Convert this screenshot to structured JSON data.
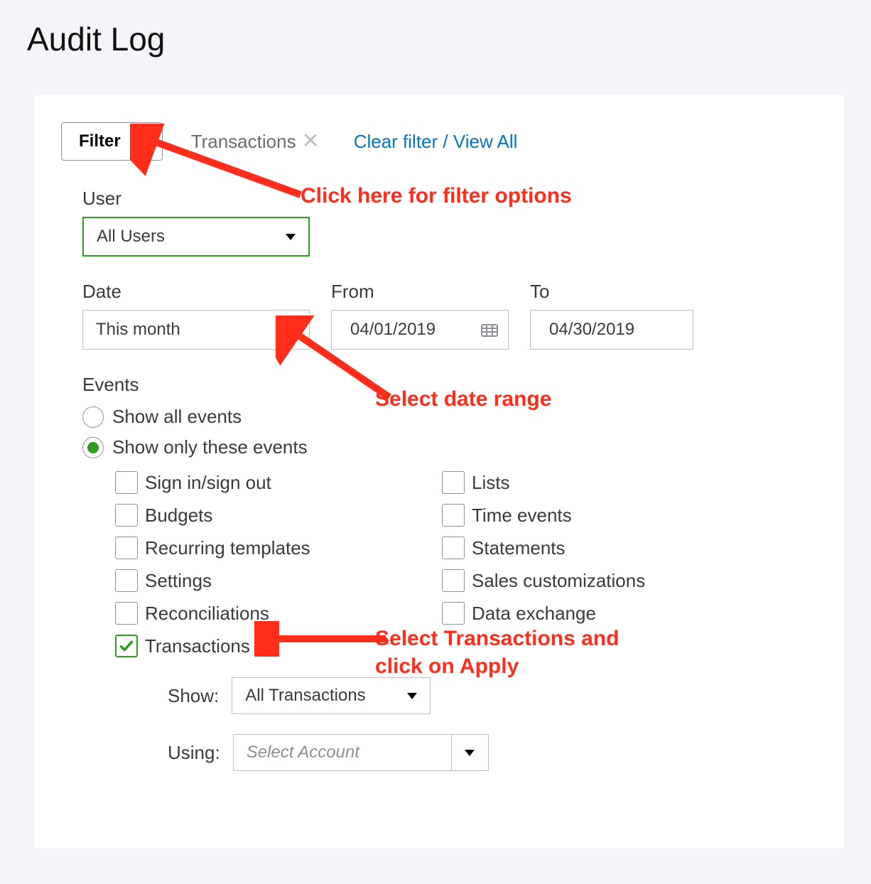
{
  "page_title": "Audit Log",
  "top_bar": {
    "filter_label": "Filter",
    "active_chip": "Transactions",
    "clear_link": "Clear filter / View All"
  },
  "user": {
    "label": "User",
    "selected": "All Users",
    "border_color": "#2ca01c"
  },
  "date": {
    "label": "Date",
    "selected": "This month",
    "from_label": "From",
    "from_value": "04/01/2019",
    "to_label": "To",
    "to_value": "04/30/2019"
  },
  "events": {
    "heading": "Events",
    "radio_all": "Show all events",
    "radio_only": "Show only these events",
    "selected_radio": "only",
    "checkbox_cols": {
      "left": [
        {
          "label": "Sign in/sign out",
          "checked": false
        },
        {
          "label": "Budgets",
          "checked": false
        },
        {
          "label": "Recurring templates",
          "checked": false
        },
        {
          "label": "Settings",
          "checked": false
        },
        {
          "label": "Reconciliations",
          "checked": false
        },
        {
          "label": "Transactions",
          "checked": true
        }
      ],
      "right": [
        {
          "label": "Lists",
          "checked": false
        },
        {
          "label": "Time events",
          "checked": false
        },
        {
          "label": "Statements",
          "checked": false
        },
        {
          "label": "Sales customizations",
          "checked": false
        },
        {
          "label": "Data exchange",
          "checked": false
        }
      ]
    },
    "checkmark_color": "#2ca01c"
  },
  "sub": {
    "show_label": "Show:",
    "show_value": "All Transactions",
    "using_label": "Using:",
    "using_placeholder": "Select Account"
  },
  "annotations": {
    "color": "#ff2d1a",
    "filter": "Click here for filter options",
    "date": "Select date range",
    "transactions": "Select Transactions and click on Apply"
  },
  "colors": {
    "page_bg": "#f4f5f8",
    "panel_bg": "#ffffff",
    "text": "#393a3d",
    "muted": "#6b6c72",
    "border": "#babec5",
    "link": "#0077c5",
    "green": "#2ca01c",
    "annotation": "#ff2d1a"
  }
}
